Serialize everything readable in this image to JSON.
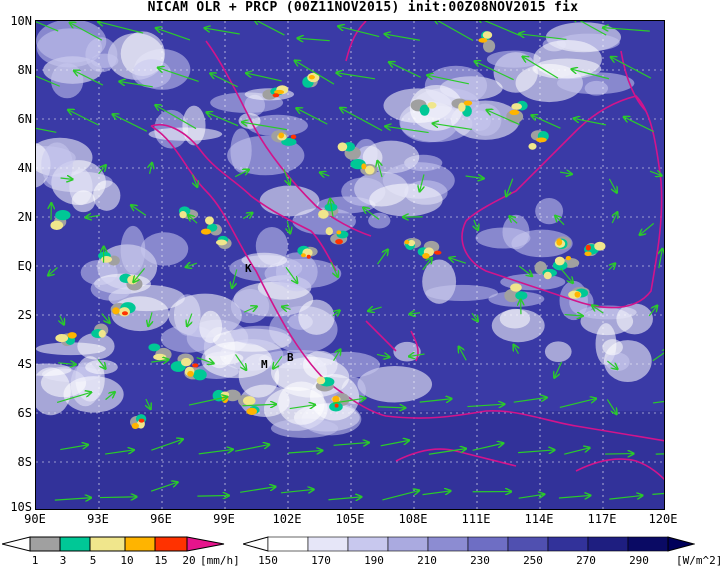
{
  "title": "NICAM OLR + PRCP (00Z11NOV2015) init:00Z08NOV2015 fix",
  "y_ticks": [
    "10N",
    "8N",
    "6N",
    "4N",
    "2N",
    "EQ",
    "2S",
    "4S",
    "6S",
    "8S",
    "10S"
  ],
  "x_ticks": [
    "90E",
    "93E",
    "96E",
    "99E",
    "102E",
    "105E",
    "108E",
    "111E",
    "114E",
    "117E",
    "120E"
  ],
  "places": [
    {
      "label": "K"
    },
    {
      "label": "M"
    },
    {
      "label": "B"
    }
  ],
  "precip_bar": {
    "labels": [
      "1",
      "3",
      "5",
      "10",
      "15",
      "20"
    ],
    "unit": "[mm/h]",
    "colors": [
      "#a0a0a0",
      "#00c896",
      "#f0e68c",
      "#ffb400",
      "#ff3200",
      "#e6148c"
    ]
  },
  "olr_bar": {
    "labels": [
      "150",
      "170",
      "190",
      "210",
      "230",
      "250",
      "270",
      "290"
    ],
    "unit": "[W/m^2]",
    "colors": [
      "#ffffff",
      "#e6e6f8",
      "#c8c8ee",
      "#aaaae0",
      "#8c8cd2",
      "#6e6ec4",
      "#5050b0",
      "#32329a",
      "#1e1e80",
      "#0a0a64"
    ]
  },
  "colors": {
    "coast": "#d2148c",
    "wind": "#2acb2a",
    "land_outline": "#d2148c"
  }
}
